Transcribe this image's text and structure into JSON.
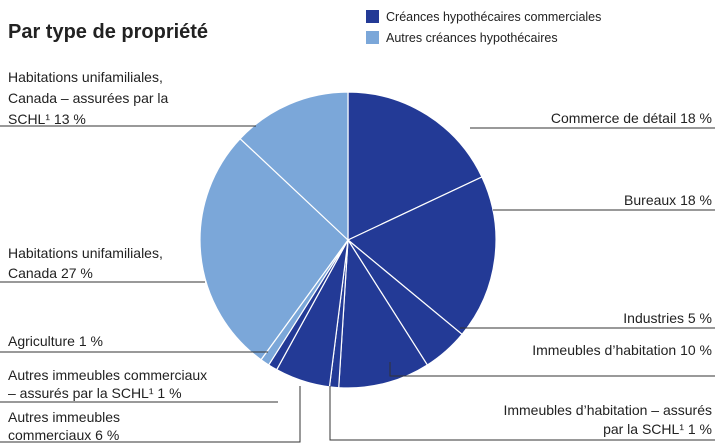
{
  "chart_data": {
    "type": "pie",
    "title": "Par type de propriété",
    "legend": [
      {
        "name": "Créances hypothécaires commerciales",
        "color": "#233a96"
      },
      {
        "name": "Autres créances hypothécaires",
        "color": "#7ba7d9"
      }
    ],
    "categories": [
      [
        "Commerce de détail"
      ],
      [
        "Bureaux"
      ],
      [
        "Industries"
      ],
      [
        "Immeubles d’habitation"
      ],
      [
        "Immeubles d’habitation – assurés",
        "par la SCHL¹"
      ],
      [
        "Autres immeubles",
        "commerciaux"
      ],
      [
        "Autres immeubles commerciaux",
        "– assurés par la SCHL¹"
      ],
      [
        "Agriculture"
      ],
      [
        "Habitations unifamiliales,",
        "Canada"
      ],
      [
        "Habitations unifamiliales,",
        "Canada – assurées par la",
        "SCHL¹"
      ]
    ],
    "values": [
      18,
      18,
      5,
      10,
      1,
      6,
      1,
      1,
      27,
      13
    ],
    "value_labels": [
      "18 %",
      "18 %",
      "5 %",
      "10 %",
      "1 %",
      "6 %",
      "1 %",
      "1 %",
      "27 %",
      "13 %"
    ],
    "colors": [
      "#233a96",
      "#233a96",
      "#233a96",
      "#233a96",
      "#233a96",
      "#233a96",
      "#233a96",
      "#7ba7d9",
      "#7ba7d9",
      "#7ba7d9"
    ]
  }
}
